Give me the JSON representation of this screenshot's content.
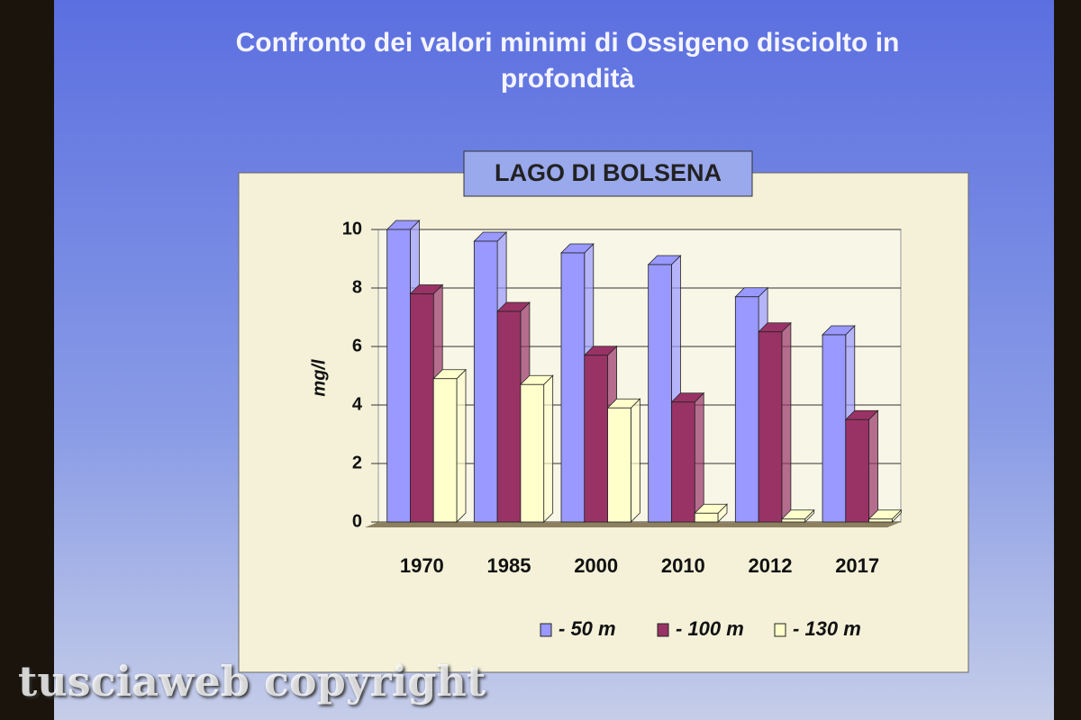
{
  "chart_data": {
    "type": "bar",
    "title": "Confronto dei valori minimi di Ossigeno disciolto in profondità",
    "subtitle": "LAGO DI BOLSENA",
    "y_label": "mg/l",
    "categories": [
      "1970",
      "1985",
      "2000",
      "2010",
      "2012",
      "2017"
    ],
    "series": [
      {
        "name": "- 50 m",
        "color": "#9999ff",
        "values": [
          10,
          9.6,
          9.2,
          8.8,
          7.7,
          6.4
        ]
      },
      {
        "name": "- 100 m",
        "color": "#993366",
        "values": [
          7.8,
          7.2,
          5.7,
          4.1,
          6.5,
          3.5
        ]
      },
      {
        "name": "- 130 m",
        "color": "#ffffcc",
        "values": [
          4.9,
          4.7,
          3.9,
          0.3,
          0.1,
          0.1
        ]
      }
    ],
    "ylim": [
      0,
      10
    ],
    "yticks": [
      0,
      2,
      4,
      6,
      8,
      10
    ],
    "grid": true,
    "watermark": "tusciaweb copyright"
  }
}
